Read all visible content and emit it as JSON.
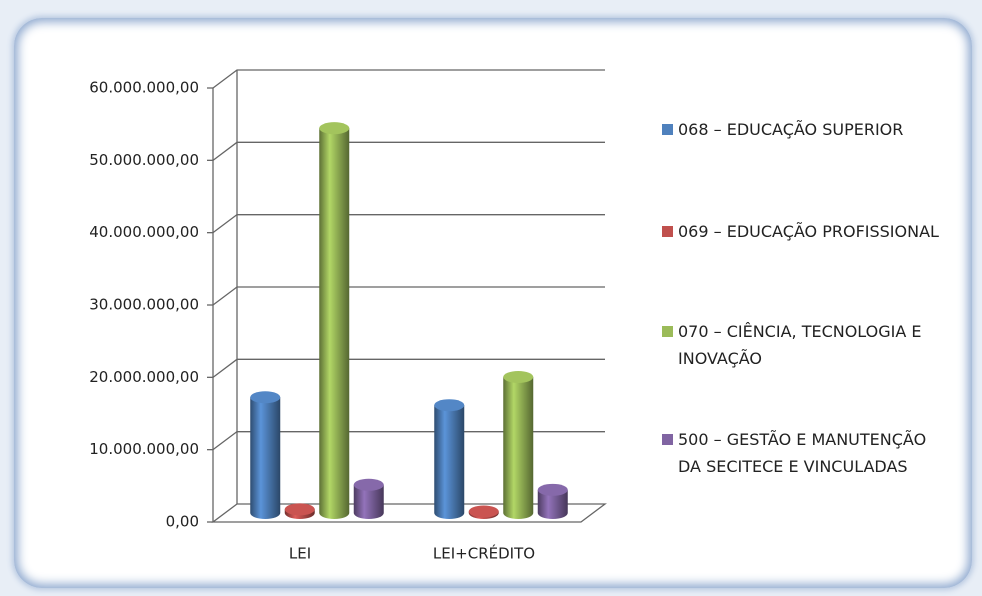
{
  "chart_data": {
    "type": "bar",
    "categories": [
      "LEI",
      "LEI+CRÉDITO"
    ],
    "series": [
      {
        "name": "068 – EDUCAÇÃO SUPERIOR",
        "color": "#4f81bd",
        "values": [
          16000000,
          14900000
        ]
      },
      {
        "name": "069 – EDUCAÇÃO PROFISSIONAL",
        "color": "#c0504d",
        "values": [
          500000,
          200000
        ]
      },
      {
        "name": "070 – CIÊNCIA, TECNOLOGIA E INOVAÇÃO",
        "color": "#9bbb59",
        "values": [
          53200000,
          18800000
        ]
      },
      {
        "name": "500 – GESTÃO E MANUTENÇÃO DA SECITECE E VINCULADAS",
        "color": "#8064a2",
        "values": [
          3900000,
          3200000
        ]
      }
    ],
    "ylim": [
      0,
      60000000
    ],
    "yticks": [
      {
        "value": 0,
        "label": "0,00"
      },
      {
        "value": 10000000,
        "label": "10.000.000,00"
      },
      {
        "value": 20000000,
        "label": "20.000.000,00"
      },
      {
        "value": 30000000,
        "label": "30.000.000,00"
      },
      {
        "value": 40000000,
        "label": "40.000.000,00"
      },
      {
        "value": 50000000,
        "label": "50.000.000,00"
      },
      {
        "value": 60000000,
        "label": "60.000.000,00"
      }
    ],
    "grid": true,
    "legend": "right"
  }
}
